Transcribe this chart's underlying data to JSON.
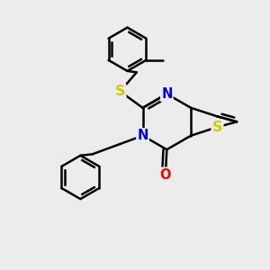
{
  "bg_color": "#ececec",
  "bond_color": "#000000",
  "N_color": "#0000ee",
  "S_color": "#cccc00",
  "O_color": "#ff0000",
  "line_width": 1.8,
  "font_size": 10.5,
  "xlim": [
    0,
    10
  ],
  "ylim": [
    0,
    10
  ]
}
